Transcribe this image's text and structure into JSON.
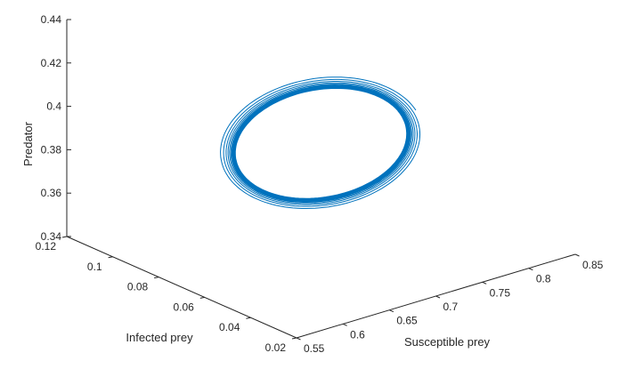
{
  "chart_data": {
    "type": "line",
    "subtype": "3d-parametric",
    "title": "",
    "series": [
      {
        "color": "#0072BD",
        "description": "trajectory spiralling inward onto a limit cycle",
        "center": {
          "susceptible_prey": 0.7,
          "infected_prey": 0.07,
          "predator": 0.387
        },
        "outer_extent": {
          "susceptible_prey": [
            0.58,
            0.84
          ],
          "predator": [
            0.359,
            0.397
          ]
        },
        "inner_extent": {
          "susceptible_prey": [
            0.6,
            0.82
          ],
          "predator": [
            0.367,
            0.392
          ]
        },
        "loops": 16
      }
    ],
    "axes": {
      "x": {
        "label": "Susceptible prey",
        "range": [
          0.55,
          0.85
        ],
        "ticks": [
          "0.55",
          "0.6",
          "0.65",
          "0.7",
          "0.75",
          "0.8",
          "0.85"
        ]
      },
      "y": {
        "label": "Infected prey",
        "range": [
          0.02,
          0.12
        ],
        "ticks": [
          "0.02",
          "0.04",
          "0.06",
          "0.08",
          "0.1",
          "0.12"
        ]
      },
      "z": {
        "label": "Predator",
        "range": [
          0.34,
          0.44
        ],
        "ticks": [
          "0.34",
          "0.36",
          "0.38",
          "0.4",
          "0.42",
          "0.44"
        ]
      }
    },
    "grid": false
  }
}
